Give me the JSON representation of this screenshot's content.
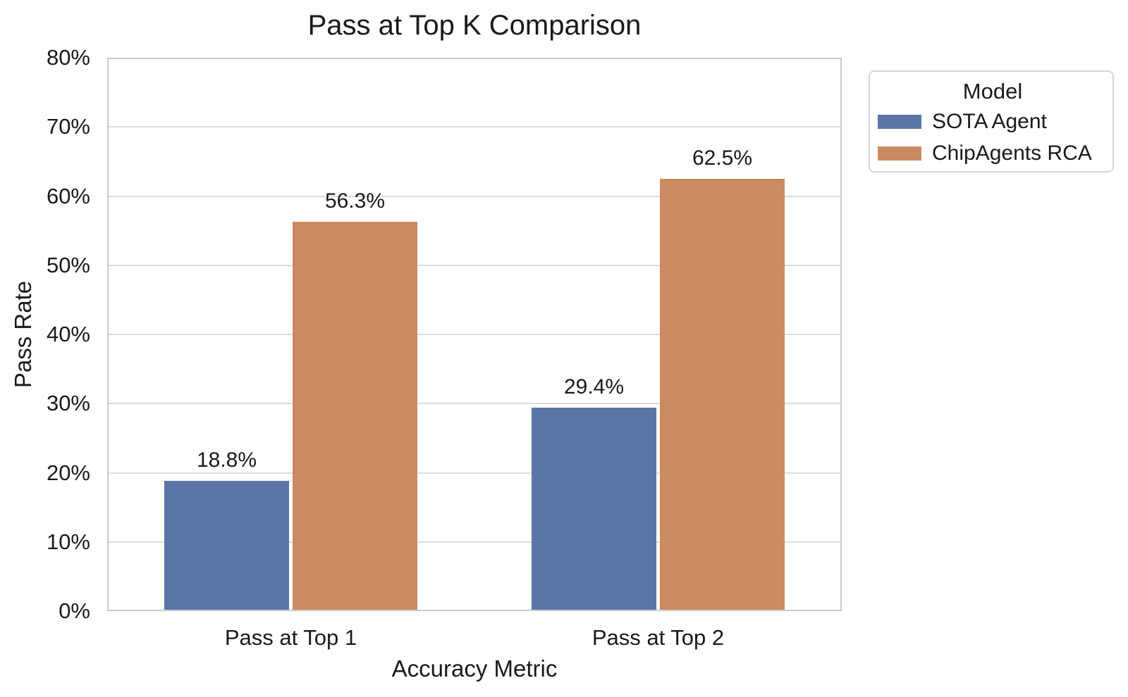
{
  "chart_data": {
    "type": "bar",
    "title": "Pass at Top K Comparison",
    "xlabel": "Accuracy Metric",
    "ylabel": "Pass Rate",
    "categories": [
      "Pass at Top 1",
      "Pass at Top 2"
    ],
    "series": [
      {
        "name": "SOTA Agent",
        "color": "#5A76A8",
        "values": [
          18.8,
          29.4
        ],
        "value_labels": [
          "18.8%",
          "29.4%"
        ]
      },
      {
        "name": "ChipAgents RCA",
        "color": "#CC8A62",
        "values": [
          56.3,
          62.5
        ],
        "value_labels": [
          "56.3%",
          "62.5%"
        ]
      }
    ],
    "ylim": [
      0,
      80
    ],
    "yticks": [
      "0%",
      "10%",
      "20%",
      "30%",
      "40%",
      "50%",
      "60%",
      "70%",
      "80%"
    ],
    "ytick_values": [
      0,
      10,
      20,
      30,
      40,
      50,
      60,
      70,
      80
    ],
    "grid": true,
    "legend": {
      "title": "Model",
      "position": "outside-upper-right"
    }
  },
  "colors": {
    "background": "#ffffff",
    "text": "#1a1a1a",
    "gridline": "#dcdcdc",
    "spine": "#cbcbcb",
    "series_blue": "#5A76A8",
    "series_orange": "#CC8A62"
  }
}
